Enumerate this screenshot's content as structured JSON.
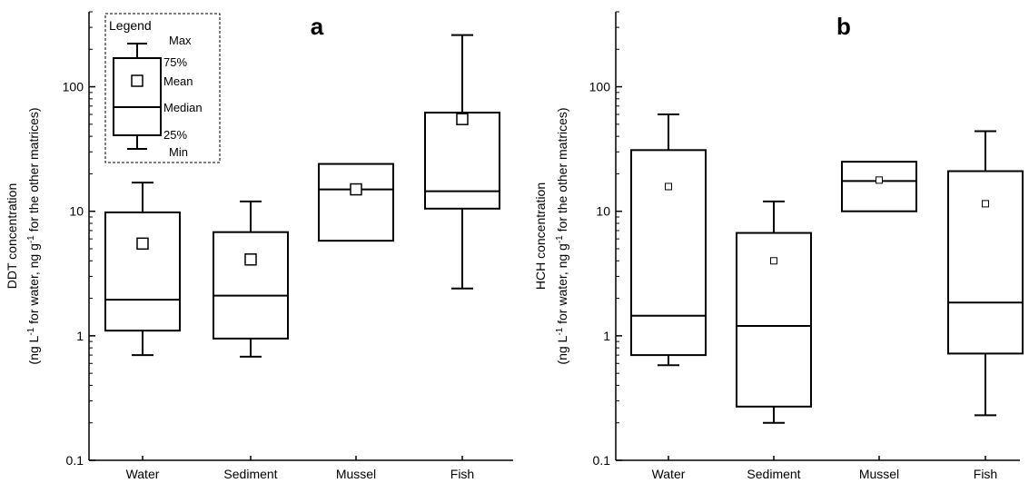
{
  "chart_data": [
    {
      "type": "box",
      "panel_label": "a",
      "scale": "log",
      "ylim": [
        0.1,
        400
      ],
      "yticks": [
        0.1,
        1,
        10,
        100
      ],
      "ytick_labels": [
        "0.1",
        "1",
        "10",
        "100"
      ],
      "ylabel_line1": "DDT concentration",
      "ylabel_line2_parts": [
        "(ng L",
        "-1",
        " for water, ng g",
        "-1",
        " for the other matrices)"
      ],
      "categories": [
        "Water",
        "Sediment",
        "Mussel",
        "Fish"
      ],
      "boxes": [
        {
          "category": "Water",
          "min": 0.7,
          "q1": 1.1,
          "median": 1.95,
          "q3": 9.8,
          "max": 17,
          "mean": 5.5
        },
        {
          "category": "Sediment",
          "min": 0.68,
          "q1": 0.95,
          "median": 2.1,
          "q3": 6.8,
          "max": 12,
          "mean": 4.1
        },
        {
          "category": "Mussel",
          "q1": 5.8,
          "median": 15,
          "q3": 24,
          "mean": 15
        },
        {
          "category": "Fish",
          "min": 2.4,
          "q1": 10.5,
          "median": 14.5,
          "q3": 62,
          "max": 260,
          "mean": 55
        }
      ],
      "legend": {
        "title": "Legend",
        "labels": {
          "max": "Max",
          "q3": "75%",
          "mean": "Mean",
          "median": "Median",
          "q1": "25%",
          "min": "Min"
        }
      }
    },
    {
      "type": "box",
      "panel_label": "b",
      "scale": "log",
      "ylim": [
        0.1,
        400
      ],
      "yticks": [
        0.1,
        1,
        10,
        100
      ],
      "ytick_labels": [
        "0.1",
        "1",
        "10",
        "100"
      ],
      "ylabel_line1": "HCH concentration",
      "ylabel_line2_parts": [
        "(ng L",
        "-1",
        " for water, ng g",
        "-1",
        " for the other matrices)"
      ],
      "categories": [
        "Water",
        "Sediment",
        "Mussel",
        "Fish"
      ],
      "boxes": [
        {
          "category": "Water",
          "min": 0.58,
          "q1": 0.7,
          "median": 1.45,
          "q3": 31,
          "max": 60,
          "mean": 15.8
        },
        {
          "category": "Sediment",
          "min": 0.2,
          "q1": 0.27,
          "median": 1.2,
          "q3": 6.7,
          "max": 12,
          "mean": 4.0
        },
        {
          "category": "Mussel",
          "q1": 10,
          "median": 17.5,
          "q3": 25,
          "mean": 17.8
        },
        {
          "category": "Fish",
          "min": 0.23,
          "q1": 0.72,
          "median": 1.85,
          "q3": 21,
          "max": 44,
          "mean": 11.5
        }
      ]
    }
  ]
}
